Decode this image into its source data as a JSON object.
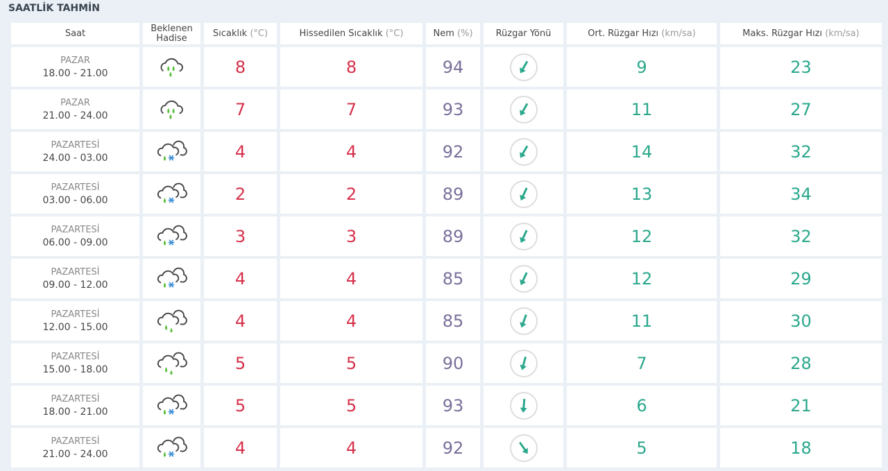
{
  "title": "SAATLİK TAHMİN",
  "headers": [
    {
      "label": "Saat",
      "unit": ""
    },
    {
      "label": "Beklenen Hadise",
      "unit": ""
    },
    {
      "label": "Sıcaklık",
      "unit": "(°C)"
    },
    {
      "label": "Hissedilen Sıcaklık",
      "unit": "(°C)"
    },
    {
      "label": "Nem",
      "unit": "(%)"
    },
    {
      "label": "Rüzgar Yönü",
      "unit": ""
    },
    {
      "label": "Ort. Rüzgar Hızı",
      "unit": "(km/sa)"
    },
    {
      "label": "Maks. Rüzgar Hızı",
      "unit": "(km/sa)"
    }
  ],
  "colors": {
    "temp": "#d6304a",
    "humidity": "#7a6f9a",
    "wind": "#2aa88c"
  },
  "rows": [
    {
      "day": "PAZAR",
      "time": "18.00 - 21.00",
      "icon": "heavy-rain",
      "temp": "8",
      "feels": "8",
      "hum": "94",
      "dir_deg": 30,
      "avg": "9",
      "max": "23"
    },
    {
      "day": "PAZAR",
      "time": "21.00 - 24.00",
      "icon": "heavy-rain",
      "temp": "7",
      "feels": "7",
      "hum": "93",
      "dir_deg": 30,
      "avg": "11",
      "max": "27"
    },
    {
      "day": "PAZARTESİ",
      "time": "24.00 - 03.00",
      "icon": "sleet",
      "temp": "4",
      "feels": "4",
      "hum": "92",
      "dir_deg": 30,
      "avg": "14",
      "max": "32"
    },
    {
      "day": "PAZARTESİ",
      "time": "03.00 - 06.00",
      "icon": "sleet",
      "temp": "2",
      "feels": "2",
      "hum": "89",
      "dir_deg": 25,
      "avg": "13",
      "max": "34"
    },
    {
      "day": "PAZARTESİ",
      "time": "06.00 - 09.00",
      "icon": "sleet",
      "temp": "3",
      "feels": "3",
      "hum": "89",
      "dir_deg": 25,
      "avg": "12",
      "max": "32"
    },
    {
      "day": "PAZARTESİ",
      "time": "09.00 - 12.00",
      "icon": "sleet",
      "temp": "4",
      "feels": "4",
      "hum": "85",
      "dir_deg": 25,
      "avg": "12",
      "max": "29"
    },
    {
      "day": "PAZARTESİ",
      "time": "12.00 - 15.00",
      "icon": "rain",
      "temp": "4",
      "feels": "4",
      "hum": "85",
      "dir_deg": 20,
      "avg": "11",
      "max": "30"
    },
    {
      "day": "PAZARTESİ",
      "time": "15.00 - 18.00",
      "icon": "rain",
      "temp": "5",
      "feels": "5",
      "hum": "90",
      "dir_deg": 15,
      "avg": "7",
      "max": "28"
    },
    {
      "day": "PAZARTESİ",
      "time": "18.00 - 21.00",
      "icon": "sleet",
      "temp": "5",
      "feels": "5",
      "hum": "93",
      "dir_deg": 5,
      "avg": "6",
      "max": "21"
    },
    {
      "day": "PAZARTESİ",
      "time": "21.00 - 24.00",
      "icon": "sleet",
      "temp": "4",
      "feels": "4",
      "hum": "92",
      "dir_deg": -35,
      "avg": "5",
      "max": "18"
    }
  ]
}
